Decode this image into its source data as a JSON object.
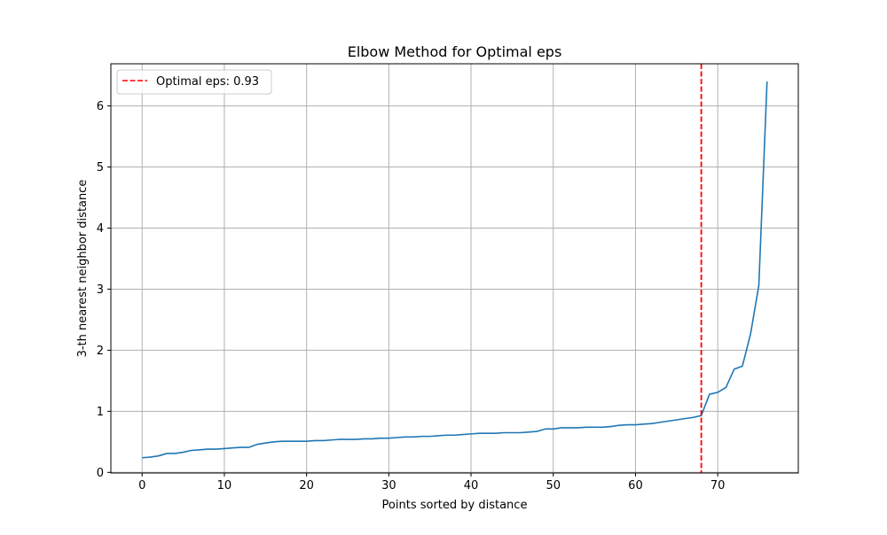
{
  "chart_data": {
    "type": "line",
    "title": "Elbow Method for Optimal eps",
    "xlabel": "Points sorted by distance",
    "ylabel": "3-th nearest neighbor distance",
    "xlim": [
      -3.8,
      79.8
    ],
    "ylim": [
      -0.01,
      6.69
    ],
    "xticks": [
      0,
      10,
      20,
      30,
      40,
      50,
      60,
      70
    ],
    "yticks": [
      0,
      1,
      2,
      3,
      4,
      5,
      6
    ],
    "grid": true,
    "legend_position": "top-left",
    "series": [
      {
        "name": "",
        "color": "#1f77b4",
        "x": [
          0,
          1,
          2,
          3,
          4,
          5,
          6,
          7,
          8,
          9,
          10,
          11,
          12,
          13,
          14,
          15,
          16,
          17,
          18,
          19,
          20,
          21,
          22,
          23,
          24,
          25,
          26,
          27,
          28,
          29,
          30,
          31,
          32,
          33,
          34,
          35,
          36,
          37,
          38,
          39,
          40,
          41,
          42,
          43,
          44,
          45,
          46,
          47,
          48,
          49,
          50,
          51,
          52,
          53,
          54,
          55,
          56,
          57,
          58,
          59,
          60,
          61,
          62,
          63,
          64,
          65,
          66,
          67,
          68,
          69,
          70,
          71,
          72,
          73,
          74,
          75,
          76
        ],
        "y": [
          0.24,
          0.25,
          0.27,
          0.31,
          0.31,
          0.33,
          0.36,
          0.37,
          0.38,
          0.38,
          0.39,
          0.4,
          0.41,
          0.41,
          0.46,
          0.48,
          0.5,
          0.51,
          0.51,
          0.51,
          0.51,
          0.52,
          0.52,
          0.53,
          0.54,
          0.54,
          0.54,
          0.55,
          0.55,
          0.56,
          0.56,
          0.57,
          0.58,
          0.58,
          0.59,
          0.59,
          0.6,
          0.61,
          0.61,
          0.62,
          0.63,
          0.64,
          0.64,
          0.64,
          0.65,
          0.65,
          0.65,
          0.66,
          0.67,
          0.71,
          0.71,
          0.73,
          0.73,
          0.73,
          0.74,
          0.74,
          0.74,
          0.75,
          0.77,
          0.78,
          0.78,
          0.79,
          0.8,
          0.82,
          0.84,
          0.86,
          0.88,
          0.9,
          0.93,
          1.28,
          1.31,
          1.39,
          1.69,
          1.74,
          2.27,
          3.06,
          6.4
        ]
      }
    ],
    "reference_line": {
      "orientation": "vertical",
      "x": 68,
      "color": "#ff0000",
      "style": "dashed",
      "label": "Optimal eps: 0.93"
    }
  }
}
